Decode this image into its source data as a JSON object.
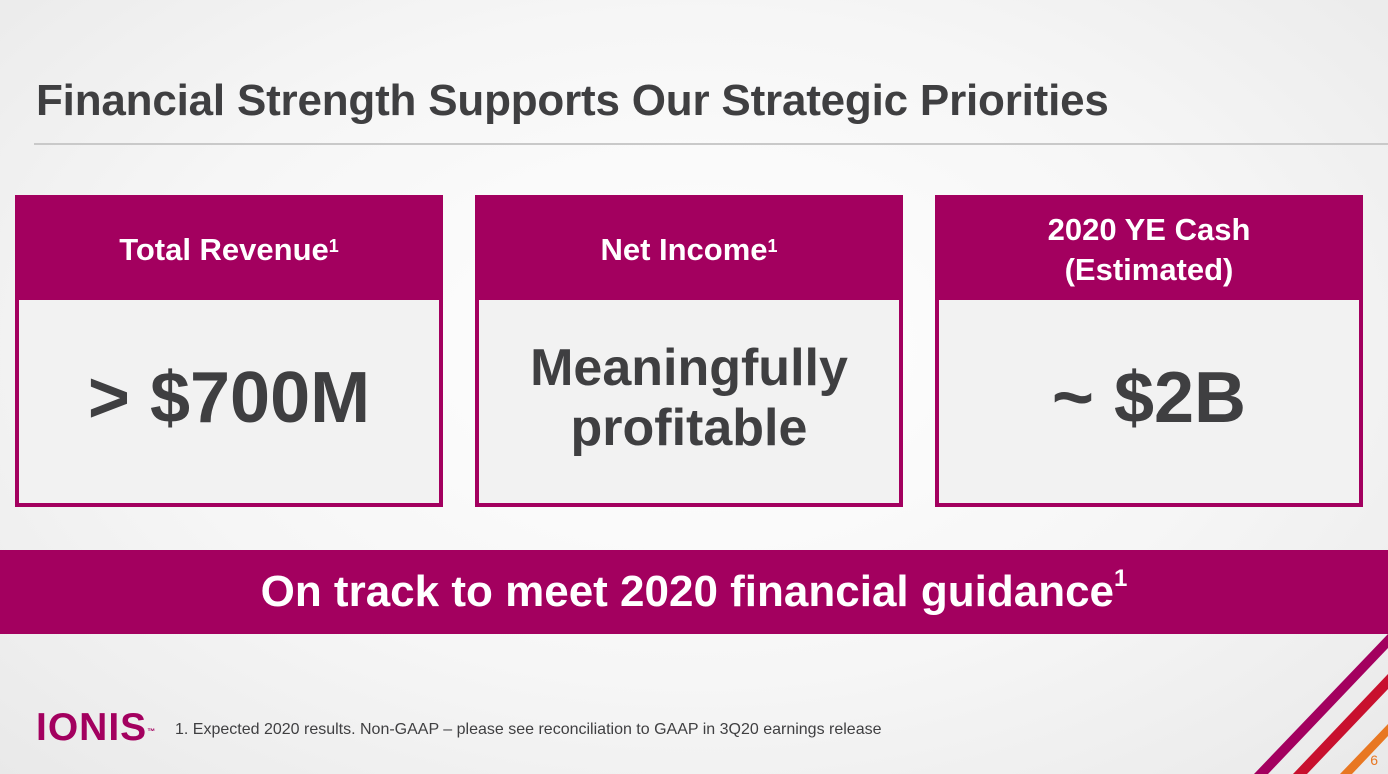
{
  "slide": {
    "title": "Financial Strength Supports Our Strategic Priorities",
    "cards": [
      {
        "heading": "Total Revenue",
        "sup": "1",
        "value": "> $700M"
      },
      {
        "heading": "Net Income",
        "sup": "1",
        "value_line1": "Meaningfully",
        "value_line2": "profitable"
      },
      {
        "heading_line1": "2020 YE Cash",
        "heading_line2": "(Estimated)",
        "value": "~ $2B"
      }
    ],
    "banner": {
      "text": "On track to meet 2020 financial guidance",
      "sup": "1"
    },
    "footer": {
      "logo": "IONIS",
      "logo_tm": "™",
      "footnote": "1. Expected 2020 results. Non-GAAP – please see reconciliation to GAAP in 3Q20 earnings release",
      "page_number": "6"
    }
  },
  "colors": {
    "brand": "#a3005f",
    "text": "#3f3f41",
    "accent_orange": "#e87722",
    "accent_red": "#c8102e"
  }
}
